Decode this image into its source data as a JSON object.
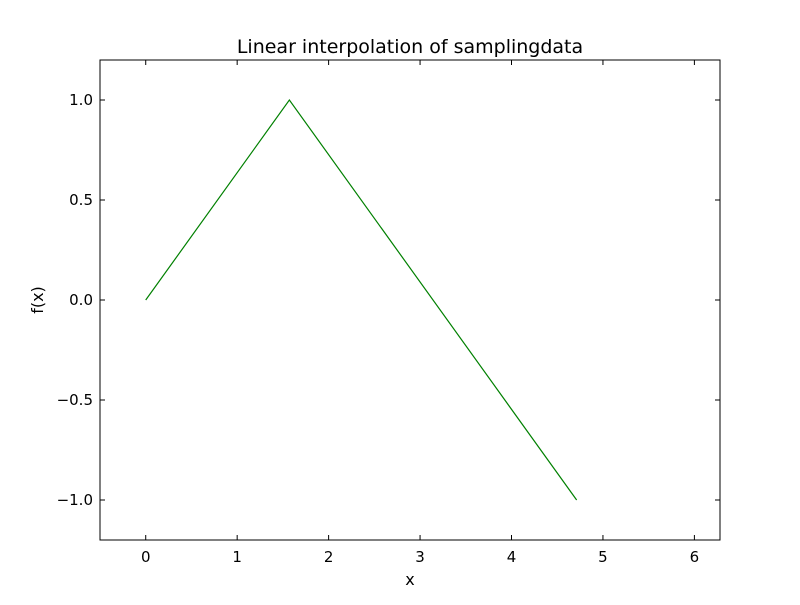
{
  "chart_data": {
    "type": "line",
    "title": "Linear interpolation of samplingdata",
    "xlabel": "x",
    "ylabel": "f(x)",
    "xlim": [
      -0.5,
      6.28
    ],
    "ylim": [
      -1.2,
      1.2
    ],
    "xticks": [
      0,
      1,
      2,
      3,
      4,
      5,
      6
    ],
    "yticks": [
      1.0,
      0.5,
      0.0,
      -0.5,
      -1.0
    ],
    "xtick_labels": [
      "0",
      "1",
      "2",
      "3",
      "4",
      "5",
      "6"
    ],
    "ytick_labels": [
      "1.0",
      "0.5",
      "0.0",
      "−0.5",
      "−1.0"
    ],
    "grid": false,
    "series": [
      {
        "color": "#008000",
        "x": [
          0,
          1.5708,
          4.7124
        ],
        "y": [
          0.0,
          1.0,
          -1.0
        ]
      }
    ]
  }
}
